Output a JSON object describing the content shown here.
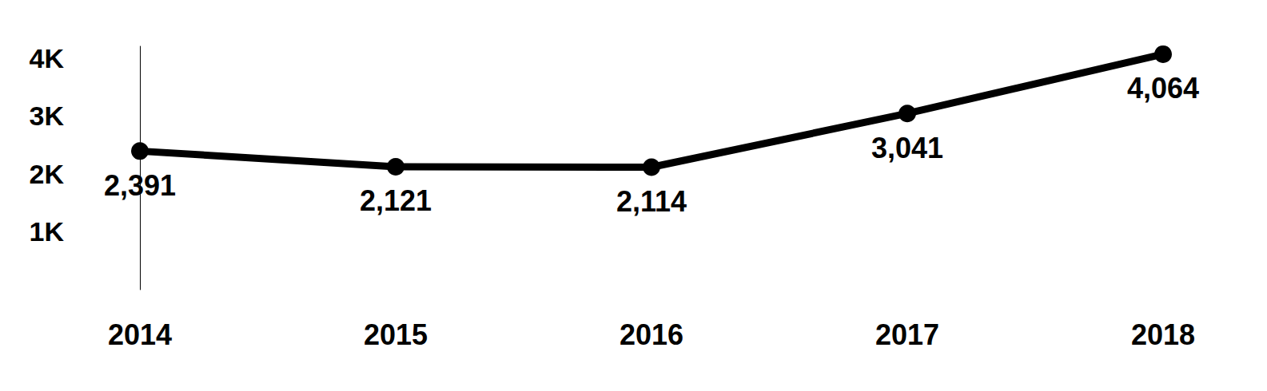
{
  "chart_data": {
    "type": "line",
    "categories": [
      "2014",
      "2015",
      "2016",
      "2017",
      "2018"
    ],
    "values": [
      2391,
      2121,
      2114,
      3041,
      4064
    ],
    "value_labels": [
      "2,391",
      "2,121",
      "2,114",
      "3,041",
      "4,064"
    ],
    "color": "#000000",
    "ylim": [
      0,
      4200
    ],
    "yticks": [
      {
        "value": 1000,
        "label": "1K"
      },
      {
        "value": 2000,
        "label": "2K"
      },
      {
        "value": 3000,
        "label": "3K"
      },
      {
        "value": 4000,
        "label": "4K"
      }
    ],
    "grid": false,
    "data_labels": true,
    "marker": "circle"
  }
}
